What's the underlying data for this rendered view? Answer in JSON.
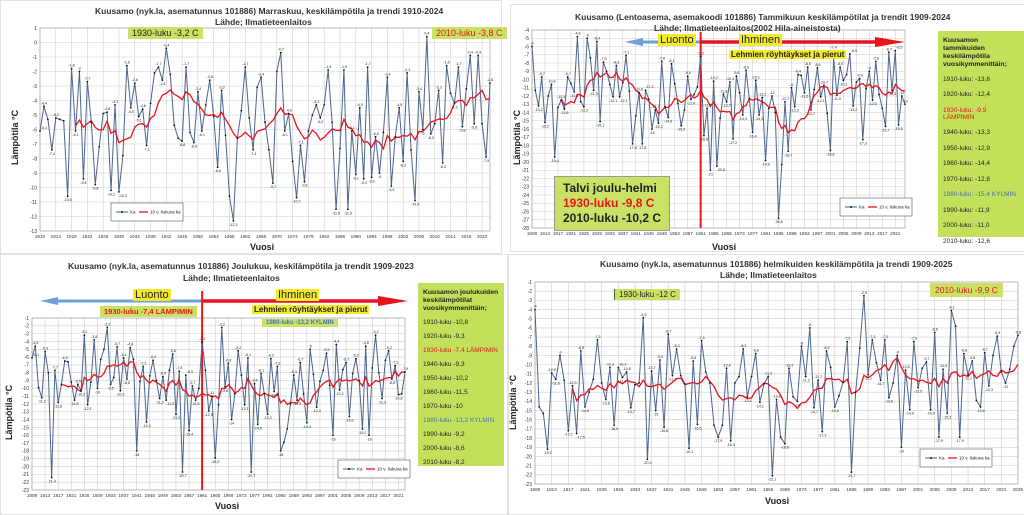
{
  "colors": {
    "ka": "#4a6590",
    "trend": "#e8141b",
    "box_green": "#c9e265",
    "highlight": "#f3ea2a",
    "arrow_blue": "#6f9fd8",
    "arrow_red": "#e8141b",
    "warm_text": "#e8141b",
    "cold_text": "#4a6fb0"
  },
  "chart_data": [
    {
      "type": "line",
      "title": "Kuusamo (nyk.la, asematunnus  101886) Marraskuu, keskilämpötila  ja trendi 1910-2024",
      "subtitle": "Lähde; Ilmatieteenlaitos",
      "xlabel": "Vuosi",
      "ylabel": "Lämpötila °C",
      "x_start": 1910,
      "xlim": [
        1910,
        2024
      ],
      "ylim": [
        -13,
        1
      ],
      "grid": true,
      "legend": [
        "Ka",
        "10 v. liukuva ka"
      ],
      "legend_position": "bottom-left",
      "annotations": {
        "warm": "1930-luku -3,2 C",
        "recent": "2010-luku -3,8 C"
      },
      "series": [
        {
          "name": "Ka",
          "values": [
            -6.1,
            -4.4,
            -5.3,
            -7.4,
            -5.2,
            -5.3,
            -5.4,
            -10.6,
            -1.8,
            -6.1,
            -2.0,
            -9.4,
            -2.7,
            -5.5,
            -9.8,
            -7.2,
            -4.9,
            -4.8,
            -10.2,
            -4.3,
            -10.3,
            -7.8,
            -1.6,
            -4.5,
            -2.8,
            -5.1,
            -4.6,
            -7.1,
            -4.2,
            -2.1,
            -1.7,
            -2.6,
            -0.4,
            -2.2,
            -5.7,
            -6.6,
            -6.8,
            -1.7,
            -6.2,
            -6.9,
            -3.4,
            -6.1,
            -4.3,
            -2.6,
            -5.1,
            -8.6,
            -3.3,
            -6.4,
            -10.6,
            -12.3,
            -6.6,
            -4.7,
            -1.7,
            -5.2,
            -7.4,
            -3.1,
            -2.4,
            -5.5,
            -7.4,
            -9.7,
            -2.0,
            -0.7,
            -6.1,
            -4.9,
            -8.2,
            -10.7,
            -7.1,
            -9.6,
            -6.1,
            -5.0,
            -4.3,
            -5.2,
            -4.3,
            -1.9,
            -5.5,
            -11.5,
            -7.3,
            -1.9,
            -11.5,
            -6.1,
            -9.1,
            -4.5,
            -9.4,
            -1.7,
            -9.3,
            -6.5,
            -9.0,
            -6.2,
            -2.4,
            -9.9,
            -6.5,
            -4.5,
            -8.2,
            -2.1,
            -7.4,
            -10.9,
            -3.4,
            -6.0,
            0.4,
            -6.3,
            -5.6,
            -3.3,
            -8.3,
            -1.6,
            -3.5,
            -4.2,
            -1.7,
            -5.8,
            -3.2,
            -0.9,
            -5.6,
            -0.9,
            -5.6,
            -7.9,
            -2.8
          ]
        },
        {
          "name": "10 v. liukuva ka"
        }
      ]
    },
    {
      "type": "line",
      "title": "Kuusamo (Lentoasema, asemakoodi  101886) Tammikuun  keskilämpötilat  ja trendit 1909-2024",
      "subtitle": "Lähde; Ilmatieteenlaitos(2002 Hila-aineistosta)",
      "xlabel": "Vuosi",
      "ylabel": "Lämpötila °C",
      "x_start": 1909,
      "xlim": [
        1909,
        2024
      ],
      "ylim": [
        -28,
        -4
      ],
      "grid": true,
      "legend": [
        "Ka",
        "10 v. liukuva ka"
      ],
      "legend_position": "bottom-right",
      "marker_year": 1961,
      "arrows": {
        "left": "Luonto",
        "right": "Ihminen",
        "note": "Lehmien röyhtäykset ja pierut"
      },
      "winter_box": {
        "title": "Talvi joulu-helmi",
        "warm": "1930-luku -9,8 C",
        "recent": "2010-luku -10,2 C"
      },
      "decades": {
        "header": "Kuusamon tammikuiden keskilämpötila vuosikymmenittäin;",
        "items": [
          "1910-luku: -13,6",
          "1920-luku: -12,4",
          "1930-luku: -9,9 LÄMPIMIN",
          "1940-luku: -13,3",
          "1950-luku: -12,9",
          "1960-luku: -14,4",
          "1970-luku: -12,8",
          "1980-luku: -15,4 KYLMIN",
          "1990-luku: -11,9",
          "2000-luku: -11,0",
          "2010-luku: -12,6"
        ]
      },
      "series": [
        {
          "name": "Ka",
          "values": [
            -6,
            -11.3,
            -13.2,
            -9.7,
            -15.2,
            -12.0,
            -10.6,
            -19.4,
            -13.4,
            -12.5,
            -13.6,
            -9.7,
            -10.5,
            -11.5,
            -4.8,
            -12.7,
            -13.3,
            -5.0,
            -7.4,
            -11.3,
            -5.4,
            -15.1,
            -7.9,
            -9.0,
            -10.6,
            -12.1,
            -8.3,
            -12.1,
            -10.4,
            -7.1,
            -11.4,
            -17.8,
            -14.4,
            -11.6,
            -17.8,
            -11.3,
            -12.4,
            -16.0,
            -13.7,
            -15.3,
            -7.8,
            -13.3,
            -14.6,
            -8.1,
            -10.5,
            -12.9,
            -15.6,
            -13.7,
            -9.6,
            -12.4,
            -11.8,
            -10.9,
            -7.2,
            -16.8,
            -13.5,
            -21.0,
            -10.2,
            -20.5,
            -14.7,
            -11.8,
            -12.7,
            -10.3,
            -17.2,
            -9.6,
            -11.6,
            -14.3,
            -8.9,
            -12.3,
            -16.4,
            -10.1,
            -14.3,
            -12.2,
            -19.8,
            -13.5,
            -12.0,
            -14.0,
            -26.8,
            -20.3,
            -12.7,
            -18.7,
            -11.0,
            -13.3,
            -9.4,
            -9.5,
            -11.6,
            -8.5,
            -13.7,
            -11.2,
            -8.6,
            -12.1,
            -10.7,
            -14.1,
            -18.6,
            -7.4,
            -11.9,
            -8.5,
            -10.1,
            -9.4,
            -6.9,
            -13.2,
            -10.3,
            -9.9,
            -17.3,
            -11.1,
            -9.0,
            -12.5,
            -7.8,
            -11.8,
            -13.5,
            -15.7,
            -6.7,
            -11.3,
            -6.5,
            -15.5,
            -12.0,
            -13.0
          ]
        },
        {
          "name": "10 v. liukuva ka"
        }
      ]
    },
    {
      "type": "line",
      "title": "Kuusamo (nyk.la, asematunnus  101886) Joulukuu,  keskilämpötila  ja trendit 1909-2023",
      "subtitle": "Lähde; Ilmatieteenlaitos",
      "xlabel": "Vuosi",
      "ylabel": "Lämpötila °C",
      "x_start": 1909,
      "xlim": [
        1909,
        2023
      ],
      "ylim": [
        -23,
        -1
      ],
      "grid": true,
      "legend": [
        "Ka",
        "10 v. liukuva ka"
      ],
      "legend_position": "bottom-right",
      "marker_year": 1961,
      "arrows": {
        "left": "Luonto",
        "right": "Ihminen",
        "note": "Lehmien röyhtäykset ja pierut"
      },
      "annotations": {
        "warm": "1930-luku -7,4 LÄMPIMIN",
        "cold": "1980-luku -13,2 KYLMIN"
      },
      "decades": {
        "header": "Kuusamon joulukuiden keskilämpötilat vuosikymmenittäin;",
        "items": [
          "1910-luku -10,8",
          "1920-luku -9,3",
          "1930-luku -7,4 LÄMPIMIN",
          "1940-luku -9,3",
          "1950-luku -10,2",
          "1960-luku -11,5",
          "1970-luku -10",
          "1980-luku -13,2 KYLMIN",
          "1990-luku -9,2",
          "2000-luku -8,6",
          "2010-luku -8,2"
        ]
      },
      "series": [
        {
          "name": "Ka",
          "values": [
            -6.1,
            -4.6,
            -9.9,
            -11.2,
            -5.3,
            -8.0,
            -21.4,
            -7.7,
            -11.8,
            -9.5,
            -6.5,
            -6.6,
            -9.2,
            -11.5,
            -9.5,
            -10.3,
            -3.2,
            -12.1,
            -9.2,
            -3.8,
            -10.0,
            -6.3,
            -5.0,
            -2.2,
            -9.5,
            -8.6,
            -4.7,
            -10.3,
            -6.1,
            -8.8,
            -4.8,
            -6.3,
            -18.0,
            -9.1,
            -7.2,
            -14.3,
            -8.4,
            -6.4,
            -9.0,
            -11.3,
            -8.5,
            -11.5,
            -7.7,
            -5.6,
            -13.3,
            -7.8,
            -20.7,
            -8.3,
            -15.4,
            -9.7,
            -11.5,
            -10.0,
            -4.1,
            -7.7,
            -12.9,
            -11.0,
            -18.9,
            -12.1,
            -2.2,
            -9.8,
            -6.8,
            -14.0,
            -10.7,
            -5.2,
            -8.3,
            -12.1,
            -6.1,
            -20.7,
            -9.4,
            -14.6,
            -8.1,
            -10.7,
            -13.3,
            -6.2,
            -10.4,
            -7.2,
            -18.0,
            -16.9,
            -15.2,
            -12.0,
            -8.3,
            -11.5,
            -6.7,
            -10.7,
            -14.4,
            -5.0,
            -8.2,
            -12.4,
            -9.1,
            -7.7,
            -5.5,
            -9.6,
            -16.0,
            -4.4,
            -10.2,
            -7.6,
            -6.7,
            -13.6,
            -8.1,
            -6.2,
            -9.0,
            -15.2,
            -4.6,
            -16.0,
            -7.4,
            -3.2,
            -8.0,
            -11.3,
            -6.4,
            -5.2,
            -8.8,
            -7.1,
            -10.8,
            -10.7,
            -7.9
          ]
        },
        {
          "name": "10 v. liukuva ka"
        }
      ]
    },
    {
      "type": "line",
      "title": "Kuusamo (nyk.la, asematunnus  101886) helmikuiden keskilämpötila  ja trendi 1909-2025",
      "subtitle": "Lähde; Ilmatieteenlaitos",
      "xlabel": "Vuosi",
      "ylabel": "Lämpötila °C",
      "x_start": 1909,
      "xlim": [
        1909,
        2025
      ],
      "ylim": [
        -23,
        -1
      ],
      "grid": true,
      "legend": [
        "Ka",
        "10 v. liukuva ka"
      ],
      "legend_position": "bottom-right",
      "annotations": {
        "warm": "1930-luku -12 C",
        "recent": "2010-luku -9,9 C"
      },
      "series": [
        {
          "name": "Ka",
          "values": [
            -4.0,
            -14.6,
            -15.3,
            -19.2,
            -10.9,
            -11.6,
            -9.0,
            -11.7,
            -17.2,
            -12.3,
            -17.5,
            -8.5,
            -14.6,
            -13.0,
            -11.6,
            -7.3,
            -12.0,
            -13.8,
            -10.3,
            -16.6,
            -10.3,
            -11.4,
            -10.8,
            -14.7,
            -12.2,
            -12.0,
            -4.9,
            -20.3,
            -10.7,
            -15.0,
            -9.5,
            -16.8,
            -6.7,
            -11.2,
            -8.3,
            -11.2,
            -12.1,
            -19.1,
            -9.6,
            -16.5,
            -7.4,
            -10.8,
            -12.0,
            -16.6,
            -17.9,
            -16.6,
            -10.4,
            -18.3,
            -12.0,
            -11.3,
            -8.3,
            -13.5,
            -11.3,
            -8.8,
            -14.1,
            -12.1,
            -11.3,
            -22.1,
            -13.8,
            -17.9,
            -18.6,
            -10.4,
            -13.5,
            -14.0,
            -8.0,
            -11.3,
            -6.0,
            -14.7,
            -11.7,
            -17.3,
            -8.5,
            -10.3,
            -14.6,
            -13.4,
            -11.9,
            -7.5,
            -21.7,
            -13.0,
            -8.2,
            -2.5,
            -11.1,
            -7.3,
            -9.8,
            -11.7,
            -7.3,
            -13.6,
            -12.0,
            -9.0,
            -19.0,
            -10.6,
            -14.9,
            -7.5,
            -12.5,
            -10.4,
            -9.7,
            -14.9,
            -6.5,
            -17.9,
            -10.5,
            -15.3,
            -4.1,
            -5.8,
            -17.9,
            -8.8,
            -11.1,
            -9.6,
            -13.9,
            -14.6,
            -8.7,
            -12.3,
            -9.0,
            -6.9,
            -10.8,
            -12.0,
            -10.5,
            -8.0,
            -6.8
          ]
        },
        {
          "name": "10 v. liukuva ka"
        }
      ]
    }
  ]
}
